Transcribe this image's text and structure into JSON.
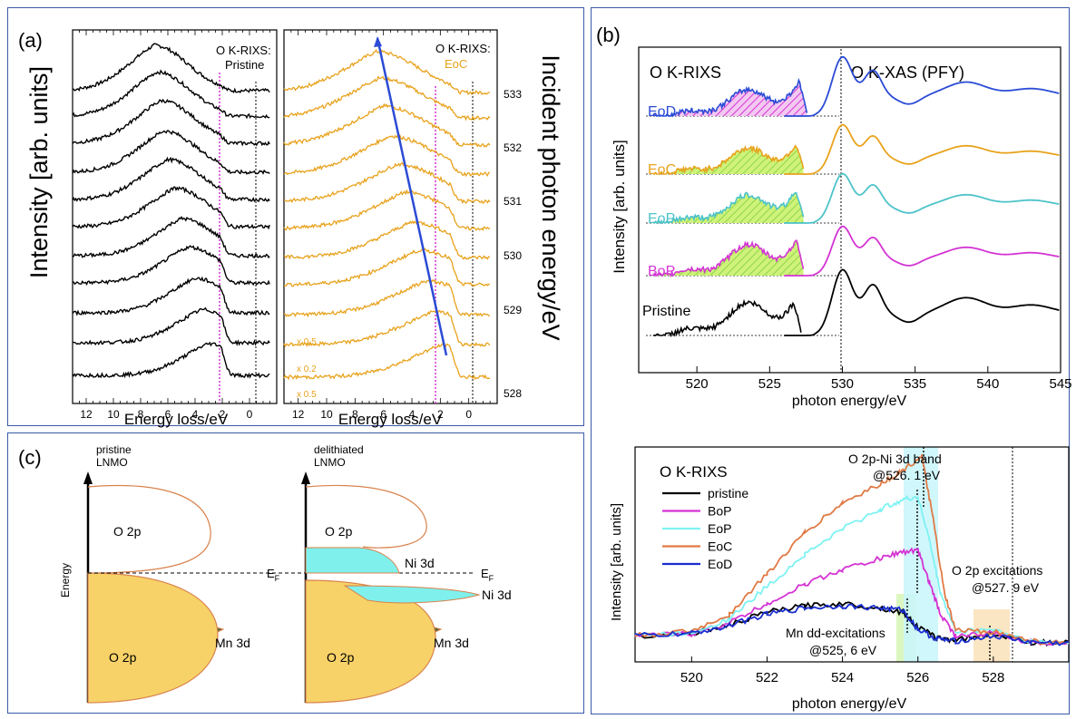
{
  "panel_a": {
    "label": "(a)",
    "left_title_line1": "O K-RIXS:",
    "left_title_line2": "Pristine",
    "right_title_line1": "O K-RIXS:",
    "right_title_line2": "EoC",
    "ylabel": "Intensity [arb. units]",
    "right_axis_label": "Incident photon energy/eV",
    "xlabel": "Energy loss/eV",
    "xticks": [
      "12",
      "10",
      "8",
      "6",
      "4",
      "2",
      "0"
    ],
    "incident_energies": [
      "533",
      "532",
      "531",
      "530",
      "529",
      "528"
    ],
    "scale_notes": [
      "x 0.5",
      "x 0.2",
      "x 0.5"
    ],
    "colors": {
      "pristine": "#000000",
      "eoc": "#e8a21c",
      "dispersion": "#2b4bd6",
      "marker": "#d433d4"
    }
  },
  "panel_b": {
    "label": "(b)",
    "rixs_title": "O K-RIXS",
    "xas_title": "O K-XAS (PFY)",
    "ylabel": "Intensity [arb. units]",
    "xlabel": "photon energy/eV",
    "xticks": [
      "520",
      "525",
      "530",
      "535",
      "540",
      "545"
    ],
    "states": [
      {
        "name": "EoD",
        "color": "#2b4bd6"
      },
      {
        "name": "EoC",
        "color": "#e8a21c"
      },
      {
        "name": "EoP",
        "color": "#4cc3c9"
      },
      {
        "name": "BoP",
        "color": "#d433d4"
      },
      {
        "name": "Pristine",
        "color": "#000000"
      }
    ]
  },
  "panel_b_lower": {
    "title": "O K-RIXS",
    "ylabel": "Intensity [arb. units]",
    "xlabel": "photon energy/eV",
    "xticks": [
      "520",
      "522",
      "524",
      "526",
      "528"
    ],
    "legend": [
      {
        "name": "pristine",
        "color": "#000000"
      },
      {
        "name": "BoP",
        "color": "#d433d4"
      },
      {
        "name": "EoP",
        "color": "#7ef2f2"
      },
      {
        "name": "EoC",
        "color": "#e07a45"
      },
      {
        "name": "EoD",
        "color": "#1a2ed1"
      }
    ],
    "annotations": {
      "band_line1": "O 2p-Ni 3d band",
      "band_line2": "@526. 1 eV",
      "exc_line1": "O 2p excitations",
      "exc_line2": "@527. 9 eV",
      "dd_line1": "Mn dd-excitations",
      "dd_line2": "@525, 6 eV"
    }
  },
  "panel_c": {
    "label": "(c)",
    "ylabel": "Energy",
    "left_title_line1": "pristine",
    "left_title_line2": "LNMO",
    "right_title_line1": "delithiated",
    "right_title_line2": "LNMO",
    "o2p_label": "O 2p",
    "mn3d_label": "Mn 3d",
    "ni3d_label": "Ni 3d",
    "fermi_label": "E",
    "fermi_sub": "F",
    "colors": {
      "o2p_filled": "#f7d268",
      "outline": "#d9834d",
      "mn3d": "#4f6b3a",
      "ni3d": "#7ff0ec"
    }
  },
  "chart_data": [
    {
      "type": "line",
      "title": "O K-RIXS: Pristine / O K-RIXS: EoC",
      "xlabel": "Energy loss/eV",
      "ylabel": "Intensity [arb. units]",
      "xlim": [
        13,
        -2
      ],
      "incident_photon_energy_eV": [
        528,
        528.5,
        529,
        529.5,
        530,
        530.5,
        531,
        531.5,
        532,
        532.5,
        533
      ],
      "series": [
        {
          "name": "Pristine",
          "peak_energy_loss_eV": [
            3,
            3.5,
            4,
            4.5,
            5,
            5.5,
            6,
            6.3,
            6.5,
            6.8,
            7
          ]
        },
        {
          "name": "EoC",
          "peak_energy_loss_eV": [
            2,
            2.5,
            3,
            3.5,
            4,
            4.5,
            5,
            5.5,
            6,
            6.3,
            6.5
          ]
        }
      ]
    },
    {
      "type": "line",
      "title": "O K-RIXS / O K-XAS (PFY)",
      "xlabel": "photon energy/eV",
      "ylabel": "Intensity [arb. units]",
      "xlim": [
        516,
        545
      ],
      "vertical_marker_eV": 528.5,
      "series_names": [
        "EoD",
        "EoC",
        "EoP",
        "BoP",
        "Pristine"
      ]
    },
    {
      "type": "line",
      "title": "O K-RIXS",
      "xlabel": "photon energy/eV",
      "ylabel": "Intensity [arb. units]",
      "xlim": [
        518.5,
        530
      ],
      "series": [
        {
          "name": "pristine",
          "x": [
            518.5,
            520,
            521,
            522,
            523,
            524,
            525,
            525.6,
            526,
            526.5,
            527,
            528,
            529,
            530
          ],
          "y": [
            0.1,
            0.12,
            0.2,
            0.32,
            0.38,
            0.4,
            0.36,
            0.32,
            0.18,
            0.08,
            0.06,
            0.12,
            0.04,
            0.03
          ]
        },
        {
          "name": "BoP",
          "x": [
            518.5,
            520,
            521,
            522,
            523,
            524,
            525,
            525.5,
            526,
            526.3,
            526.6,
            527,
            528,
            529,
            530
          ],
          "y": [
            0.1,
            0.12,
            0.22,
            0.4,
            0.58,
            0.72,
            0.82,
            0.88,
            0.9,
            0.6,
            0.3,
            0.1,
            0.12,
            0.04,
            0.03
          ]
        },
        {
          "name": "EoP",
          "x": [
            518.5,
            520,
            521,
            522,
            523,
            524,
            525,
            525.5,
            526,
            526.3,
            526.6,
            527,
            528,
            529,
            530
          ],
          "y": [
            0.1,
            0.13,
            0.26,
            0.56,
            0.86,
            1.1,
            1.28,
            1.36,
            1.4,
            1.0,
            0.5,
            0.14,
            0.16,
            0.05,
            0.03
          ]
        },
        {
          "name": "EoC",
          "x": [
            518.5,
            520,
            521,
            522,
            523,
            524,
            525,
            525.5,
            526.1,
            526.4,
            526.7,
            527,
            528,
            529,
            530
          ],
          "y": [
            0.1,
            0.14,
            0.3,
            0.68,
            1.06,
            1.34,
            1.52,
            1.62,
            1.78,
            1.2,
            0.5,
            0.15,
            0.14,
            0.05,
            0.03
          ]
        },
        {
          "name": "EoD",
          "x": [
            518.5,
            520,
            521,
            522,
            523,
            524,
            525,
            525.6,
            526,
            526.5,
            527,
            528,
            529,
            530
          ],
          "y": [
            0.1,
            0.12,
            0.2,
            0.3,
            0.36,
            0.38,
            0.36,
            0.34,
            0.16,
            0.07,
            0.05,
            0.1,
            0.04,
            0.03
          ]
        }
      ],
      "shaded_regions_eV": [
        [
          525.4,
          526.0
        ],
        [
          525.6,
          526.6
        ],
        [
          527.5,
          528.3
        ]
      ]
    }
  ]
}
